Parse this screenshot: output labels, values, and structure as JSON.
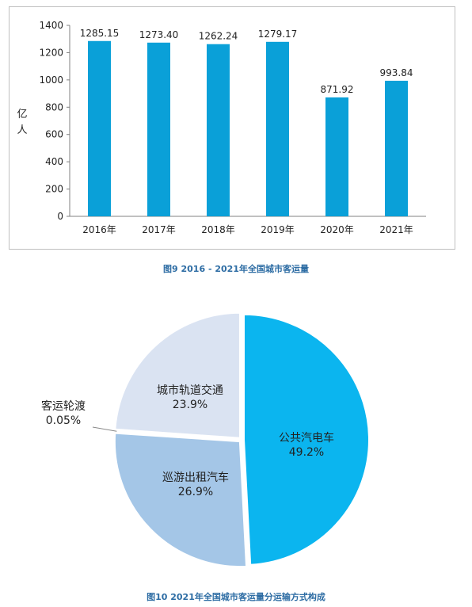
{
  "chart_data": [
    {
      "type": "bar",
      "title": "",
      "xlabel": "",
      "ylabel": "亿人",
      "categories": [
        "2016年",
        "2017年",
        "2018年",
        "2019年",
        "2020年",
        "2021年"
      ],
      "values": [
        1285.15,
        1273.4,
        1262.24,
        1279.17,
        871.92,
        993.84
      ],
      "value_labels": [
        "1285.15",
        "1273.40",
        "1262.24",
        "1279.17",
        "871.92",
        "993.84"
      ],
      "ylim": [
        0,
        1400
      ],
      "yticks": [
        0,
        200,
        400,
        600,
        800,
        1000,
        1200,
        1400
      ],
      "grid": false,
      "color": "#0aa0d8"
    },
    {
      "type": "pie",
      "title": "",
      "slices": [
        {
          "label": "公共汽电车",
          "value": 49.2,
          "value_label": "49.2%",
          "color": "#0bb5ef"
        },
        {
          "label": "巡游出租汽车",
          "value": 26.9,
          "value_label": "26.9%",
          "color": "#a4c6e7"
        },
        {
          "label": "客运轮渡",
          "value": 0.05,
          "value_label": "0.05%",
          "color": "#b9cde3"
        },
        {
          "label": "城市轨道交通",
          "value": 23.9,
          "value_label": "23.9%",
          "color": "#dae3f2"
        }
      ]
    }
  ],
  "captions": {
    "fig9": "图9  2016 - 2021年全国城市客运量",
    "fig10": "图10  2021年全国城市客运量分运输方式构成"
  }
}
